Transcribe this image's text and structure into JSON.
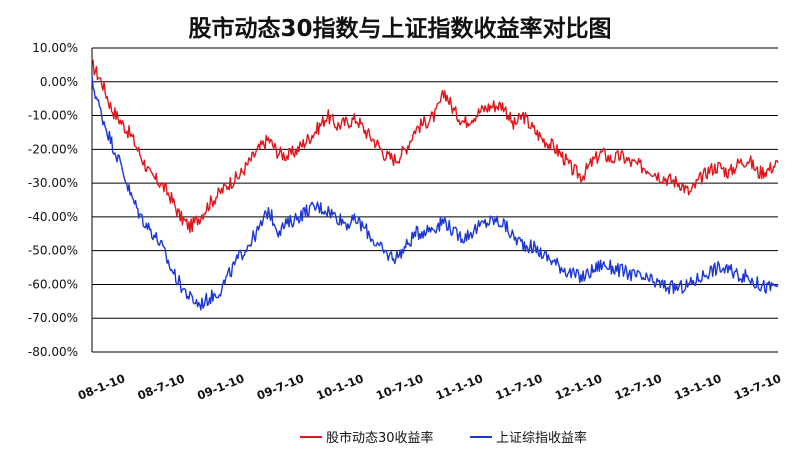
{
  "chart_data": {
    "type": "line",
    "title": "股市动态30指数与上证指数收益率对比图",
    "xlabel": "",
    "ylabel": "",
    "ylim": [
      -80,
      10
    ],
    "y_ticks": [
      "10.00%",
      "0.00%",
      "-10.00%",
      "-20.00%",
      "-30.00%",
      "-40.00%",
      "-50.00%",
      "-60.00%",
      "-70.00%",
      "-80.00%"
    ],
    "x_ticks": [
      "08-1-10",
      "08-7-10",
      "09-1-10",
      "09-7-10",
      "10-1-10",
      "10-7-10",
      "11-1-10",
      "11-7-10",
      "12-1-10",
      "12-7-10",
      "13-1-10",
      "13-7-10"
    ],
    "grid": "horizontal",
    "legend_position": "bottom",
    "x": [
      "08-1-10",
      "08-2-10",
      "08-3-10",
      "08-4-10",
      "08-5-10",
      "08-6-10",
      "08-7-10",
      "08-8-10",
      "08-9-10",
      "08-10-10",
      "08-11-10",
      "08-12-10",
      "09-1-10",
      "09-2-10",
      "09-3-10",
      "09-4-10",
      "09-5-10",
      "09-6-10",
      "09-7-10",
      "09-8-10",
      "09-9-10",
      "09-10-10",
      "09-11-10",
      "09-12-10",
      "10-1-10",
      "10-2-10",
      "10-3-10",
      "10-4-10",
      "10-5-10",
      "10-6-10",
      "10-7-10",
      "10-8-10",
      "10-9-10",
      "10-10-10",
      "10-11-10",
      "10-12-10",
      "11-1-10",
      "11-2-10",
      "11-3-10",
      "11-4-10",
      "11-5-10",
      "11-6-10",
      "11-7-10",
      "11-8-10",
      "11-9-10",
      "11-10-10",
      "11-11-10",
      "11-12-10",
      "12-1-10",
      "12-2-10",
      "12-3-10",
      "12-4-10",
      "12-5-10",
      "12-6-10",
      "12-7-10",
      "12-8-10",
      "12-9-10",
      "12-10-10",
      "12-11-10",
      "12-12-10",
      "13-1-10",
      "13-2-10",
      "13-3-10",
      "13-4-10",
      "13-5-10",
      "13-6-10",
      "13-7-10",
      "13-8-10",
      "13-9-10",
      "13-10-10",
      "13-11-10"
    ],
    "series": [
      {
        "name": "股市动态30收益率",
        "color": "#e0161c",
        "values": [
          5,
          0,
          -8,
          -12,
          -16,
          -22,
          -28,
          -30,
          -34,
          -40,
          -43,
          -40,
          -36,
          -33,
          -30,
          -28,
          -24,
          -20,
          -17,
          -21,
          -22,
          -20,
          -17,
          -14,
          -10,
          -13,
          -12,
          -11,
          -15,
          -18,
          -22,
          -23,
          -20,
          -14,
          -12,
          -10,
          -3,
          -9,
          -12,
          -10,
          -8,
          -7,
          -7,
          -13,
          -10,
          -14,
          -17,
          -19,
          -22,
          -26,
          -28,
          -24,
          -21,
          -23,
          -22,
          -24,
          -25,
          -26,
          -28,
          -29,
          -30,
          -33,
          -29,
          -26,
          -25,
          -27,
          -24,
          -23,
          -27,
          -26,
          -24
        ]
      },
      {
        "name": "上证综指收益率",
        "color": "#1c37d6",
        "values": [
          0,
          -10,
          -18,
          -25,
          -34,
          -40,
          -44,
          -48,
          -55,
          -60,
          -64,
          -66,
          -64,
          -62,
          -57,
          -52,
          -48,
          -44,
          -38,
          -44,
          -42,
          -40,
          -38,
          -37,
          -38,
          -40,
          -42,
          -41,
          -44,
          -48,
          -51,
          -52,
          -49,
          -45,
          -44,
          -43,
          -41,
          -45,
          -46,
          -44,
          -42,
          -41,
          -42,
          -46,
          -48,
          -49,
          -51,
          -53,
          -55,
          -57,
          -58,
          -56,
          -54,
          -55,
          -56,
          -57,
          -58,
          -59,
          -60,
          -61,
          -61,
          -60,
          -58,
          -56,
          -55,
          -56,
          -57,
          -58,
          -60,
          -61,
          -60
        ]
      }
    ]
  }
}
